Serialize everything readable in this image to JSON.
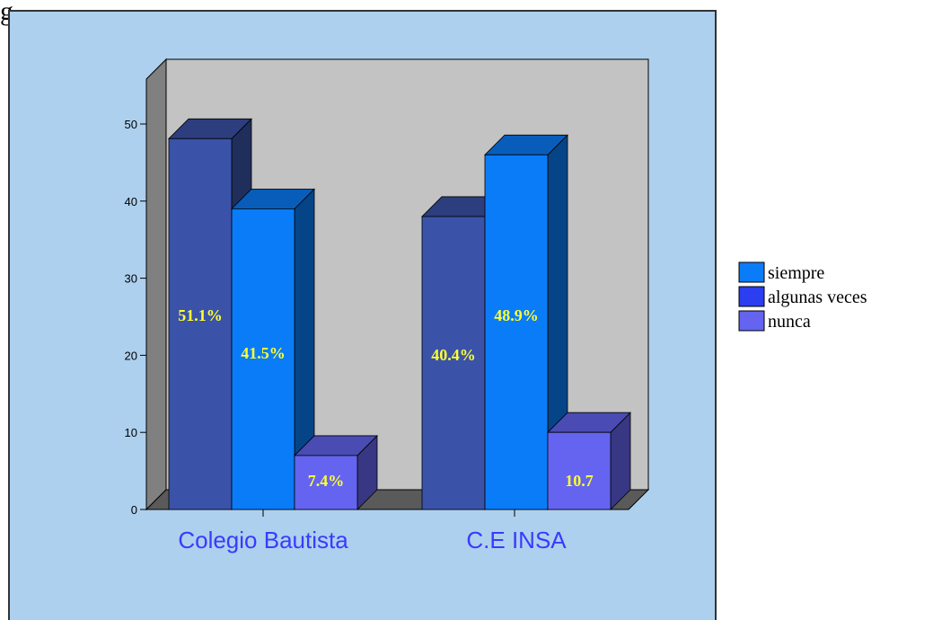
{
  "chart_data": {
    "type": "bar",
    "categories": [
      "Colegio Bautista",
      "C.E INSA"
    ],
    "series": [
      {
        "name": "siempre",
        "values": [
          48.1,
          38.0
        ],
        "labels": [
          "51.1%",
          "40.4%"
        ],
        "color": "#3a53a8"
      },
      {
        "name": "algunas veces",
        "values": [
          39.0,
          46.0
        ],
        "labels": [
          "41.5%",
          "48.9%"
        ],
        "color": "#0a7cf8"
      },
      {
        "name": "nunca",
        "values": [
          7.0,
          10.0
        ],
        "labels": [
          "7.4%",
          "10.7"
        ],
        "color": "#6464f0"
      }
    ],
    "legend": [
      {
        "name": "siempre",
        "color": "#0a7cf8"
      },
      {
        "name": "algunas veces",
        "color": "#2b3ef0"
      },
      {
        "name": "nunca",
        "color": "#6464f0"
      }
    ],
    "y_ticks": [
      0,
      10,
      20,
      30,
      40,
      50
    ],
    "ylim": [
      0,
      50
    ],
    "legend_position": "right",
    "grid": false,
    "background_color": "#add0ee",
    "wall_color": "#c3c3c3",
    "top_text": "g"
  }
}
